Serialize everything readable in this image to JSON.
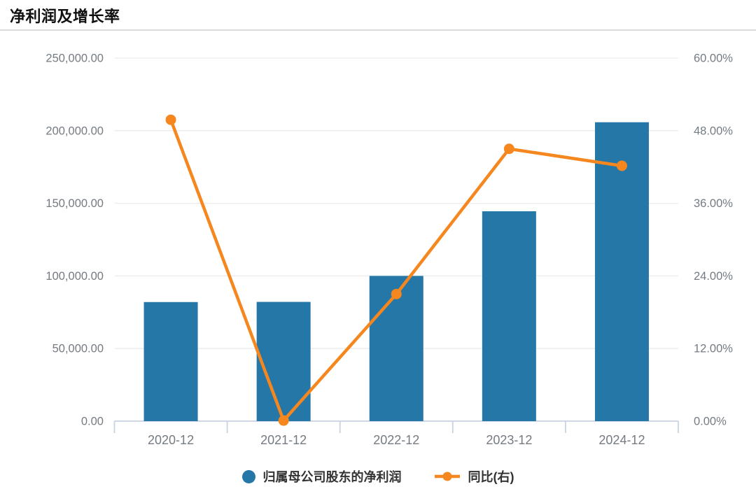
{
  "title": "净利润及增长率",
  "chart_data": {
    "type": "bar",
    "subtype": "bar+line combo, dual y-axis",
    "categories": [
      "2020-12",
      "2021-12",
      "2022-12",
      "2023-12",
      "2024-12"
    ],
    "series": [
      {
        "name": "归属母公司股东的净利润",
        "type": "bar",
        "axis": "left",
        "values": [
          82000,
          82100,
          100000,
          144500,
          205800
        ]
      },
      {
        "name": "同比(右)",
        "type": "line",
        "axis": "right",
        "values": [
          49.8,
          0.1,
          21.0,
          45.0,
          42.2
        ]
      }
    ],
    "y_axis_left": {
      "min": 0,
      "max": 250000,
      "ticks": [
        "250,000.00",
        "200,000.00",
        "150,000.00",
        "100,000.00",
        "50,000.00",
        "0.00"
      ]
    },
    "y_axis_right": {
      "min": 0,
      "max": 60,
      "ticks": [
        "60.00%",
        "48.00%",
        "36.00%",
        "24.00%",
        "12.00%",
        "0.00%"
      ]
    },
    "grid": true,
    "legend_position": "bottom",
    "colors": {
      "bar": "#2577a8",
      "line": "#f5871e",
      "gridline": "#ededed",
      "axis_line": "#c8d3e3",
      "axis_label": "#757b82",
      "title": "#111111",
      "legend_text": "#333333"
    }
  }
}
